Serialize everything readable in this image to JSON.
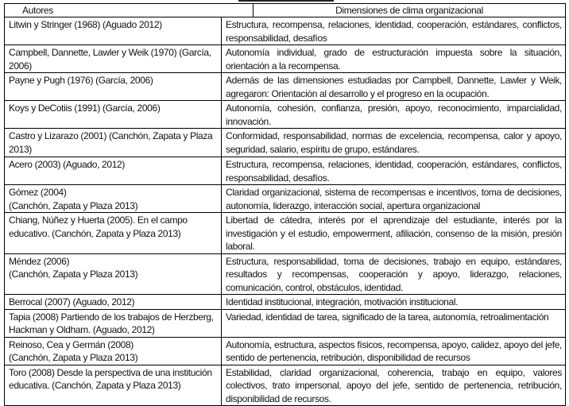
{
  "header": {
    "autores": "Autores",
    "dimensiones": "Dimensiones de clima organizacional"
  },
  "rows": [
    {
      "autores": "Litwin y Stringer (1968)  (Aguado 2012)",
      "dimensiones": "Estructura, recompensa, relaciones, identidad, cooperación, estándares, conflictos, responsabilidad, desafíos"
    },
    {
      "autores": "Campbell, Dannette, Lawler y Weik (1970) (García, 2006)",
      "dimensiones": "Autonomía individual, grado de estructuración impuesta sobre la situación, orientación a la recompensa."
    },
    {
      "autores": "Payne y Pugh (1976) (García, 2006)",
      "dimensiones": "Además de las dimensiones estudiadas por Campbell, Dannette, Lawler y Weik, agregaron: Orientación al desarrollo y el progreso en la ocupación."
    },
    {
      "autores": "Koys y DeCotiis (1991)  (García, 2006)",
      "dimensiones": "Autonomía, cohesión, confianza, presión, apoyo, reconocimiento, imparcialidad, innovación."
    },
    {
      "autores": "Castro y Lizarazo (2001) (Canchón, Zapata y Plaza 2013)",
      "dimensiones": "Conformidad, responsabilidad, normas de excelencia, recompensa, calor y apoyo, seguridad, salario, espíritu de grupo, estándares."
    },
    {
      "autores": "Acero (2003)  (Aguado, 2012)",
      "dimensiones": "Estructura, recompensa, relaciones, identidad, cooperación, estándares, conflictos, responsabilidad, desafíos."
    },
    {
      "autores": "Gómez (2004)\n(Canchón, Zapata y Plaza 2013)",
      "dimensiones": "Claridad organizacional, sistema de recompensas e incentivos, toma de decisiones, autonomía, liderazgo, interacción social, apertura organizacional"
    },
    {
      "autores": "Chiang, Núñez y Huerta (2005). En el campo educativo. (Canchón, Zapata y Plaza 2013)",
      "dimensiones": "Libertad de cátedra, interés por el aprendizaje del estudiante, interés por la investigación y el estudio, empowerment, afiliación, consenso de la misión, presión laboral."
    },
    {
      "autores": "Méndez (2006)\n(Canchón, Zapata y Plaza 2013)",
      "dimensiones": "Estructura, responsabilidad, toma de decisiones, trabajo en equipo, estándares, resultados y recompensas, cooperación y apoyo, liderazgo, relaciones, comunicación, control, obstáculos, identidad."
    },
    {
      "autores": "Berrocal (2007) (Aguado, 2012)",
      "dimensiones": "Identidad institucional, integración, motivación institucional."
    },
    {
      "autores": "Tapia (2008) Partiendo de los trabajos de Herzberg, Hackman y Oldham. (Aguado, 2012)",
      "dimensiones": "Variedad, identidad de tarea, significado de la tarea, autonomía, retroalimentación"
    },
    {
      "autores": "Reinoso, Cea y Germán (2008)\n(Canchón, Zapata y Plaza 2013)",
      "dimensiones": "Autonomía, estructura, aspectos físicos, recompensa, apoyo, calidez, apoyo del jefe, sentido de pertenencia, retribución, disponibilidad de recursos"
    },
    {
      "autores": "Toro (2008) Desde la perspectiva de una institución educativa. (Canchón, Zapata y Plaza 2013)",
      "dimensiones": "Estabilidad, claridad organizacional, coherencia, trabajo en equipo, valores colectivos, trato impersonal, apoyo del jefe, sentido de pertenencia, retribución, disponibilidad de recursos."
    }
  ]
}
